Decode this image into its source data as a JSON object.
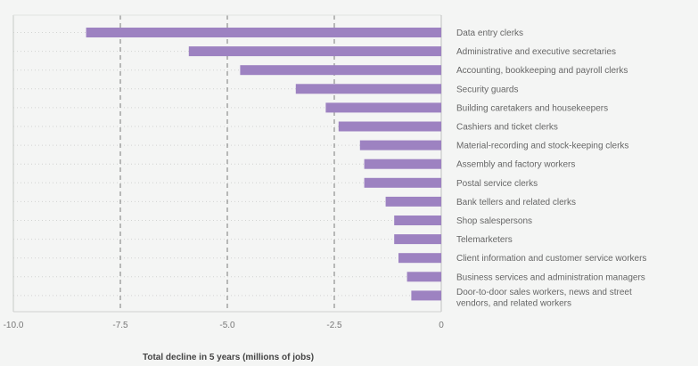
{
  "chart_data": {
    "type": "bar",
    "orientation": "horizontal",
    "title": "",
    "xlabel": "Total decline in 5 years (millions of jobs)",
    "ylabel": "",
    "xlim": [
      -10,
      0
    ],
    "xticks": [
      -10,
      -7.5,
      -5,
      -2.5,
      0
    ],
    "xtick_labels": [
      "-10.0",
      "-7.5",
      "-5.0",
      "-2.5",
      "0"
    ],
    "grid": "vertical dashed at ticks",
    "bar_color": "#9d82c1",
    "categories": [
      "Data entry clerks",
      "Administrative and executive secretaries",
      "Accounting, bookkeeping and payroll clerks",
      "Security guards",
      "Building caretakers and housekeepers",
      "Cashiers and ticket clerks",
      "Material-recording and stock-keeping clerks",
      "Assembly and factory workers",
      "Postal service clerks",
      "Bank tellers and related clerks",
      "Shop salespersons",
      "Telemarketers",
      "Client information and customer service workers",
      "Business services and administration managers",
      "Door-to-door sales workers, news and street vendors, and related workers"
    ],
    "category_label_lines": [
      [
        "Data entry clerks"
      ],
      [
        "Administrative and executive secretaries"
      ],
      [
        "Accounting, bookkeeping and payroll clerks"
      ],
      [
        "Security guards"
      ],
      [
        "Building caretakers and housekeepers"
      ],
      [
        "Cashiers and ticket clerks"
      ],
      [
        "Material-recording and stock-keeping clerks"
      ],
      [
        "Assembly and factory workers"
      ],
      [
        "Postal service clerks"
      ],
      [
        "Bank tellers and related clerks"
      ],
      [
        "Shop salespersons"
      ],
      [
        "Telemarketers"
      ],
      [
        "Client information and customer service workers"
      ],
      [
        "Business services and administration managers"
      ],
      [
        "Door-to-door sales workers, news and street",
        "vendors, and related workers"
      ]
    ],
    "values": [
      -8.3,
      -5.9,
      -4.7,
      -3.4,
      -2.7,
      -2.4,
      -1.9,
      -1.8,
      -1.8,
      -1.3,
      -1.1,
      -1.1,
      -1.0,
      -0.8,
      -0.7
    ]
  }
}
